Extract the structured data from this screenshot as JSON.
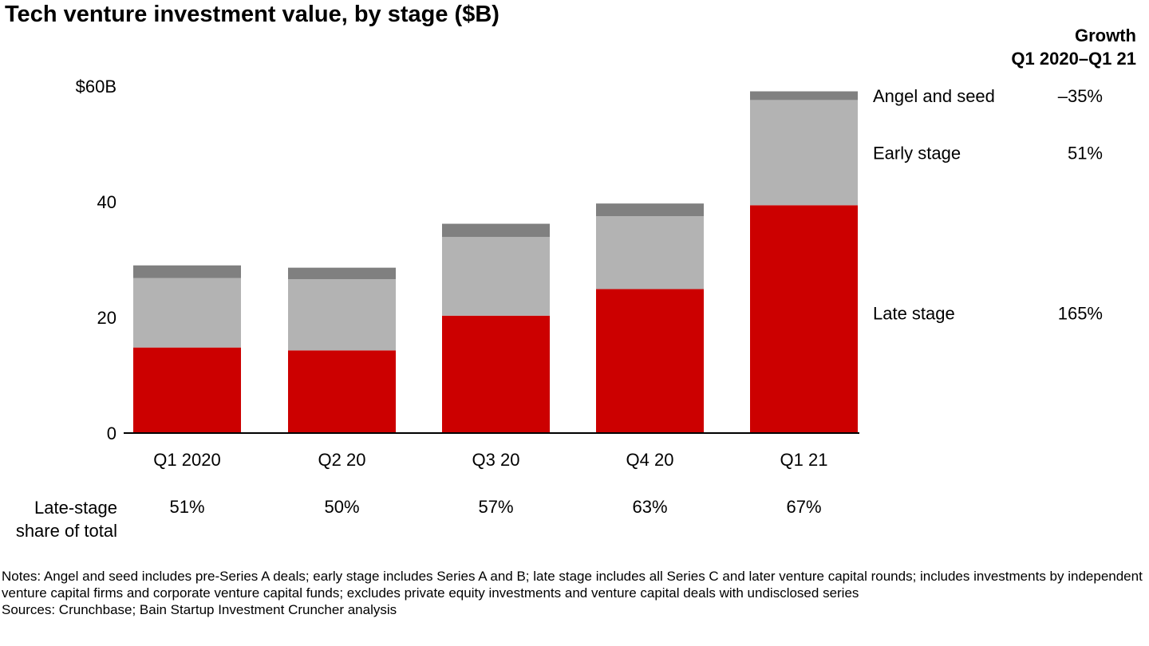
{
  "title": "Tech venture investment value, by stage ($B)",
  "growth_header": {
    "line1": "Growth",
    "line2": "Q1 2020–Q1 21"
  },
  "share_row_label": {
    "line1": "Late-stage",
    "line2": "share of total"
  },
  "notes": {
    "line1": "Notes: Angel and seed includes pre-Series A deals; early stage includes Series A and B; late stage includes all Series C and later venture capital rounds; includes investments by independent venture capital firms and corporate venture capital funds; excludes private equity investments and venture capital deals with undisclosed series",
    "line2": "Sources: Crunchbase; Bain Startup Investment Cruncher analysis"
  },
  "chart_data": {
    "type": "bar",
    "stacked": true,
    "title": "Tech venture investment value, by stage ($B)",
    "categories": [
      "Q1 2020",
      "Q2 20",
      "Q3 20",
      "Q4 20",
      "Q1 21"
    ],
    "y_ticks": [
      "0",
      "20",
      "40",
      "$60B"
    ],
    "y_tick_values": [
      0,
      20,
      40,
      60
    ],
    "ylim": [
      0,
      60
    ],
    "grid": false,
    "legend_position": "right, at the last bar",
    "series": [
      {
        "name": "Late stage",
        "color": "#cc0000",
        "values": [
          14.8,
          14.3,
          20.3,
          24.9,
          39.4
        ],
        "growth": "165%"
      },
      {
        "name": "Early stage",
        "color": "#b3b3b3",
        "values": [
          12.0,
          12.3,
          13.6,
          12.6,
          18.2
        ],
        "growth": "51%"
      },
      {
        "name": "Angel and seed",
        "color": "#808080",
        "values": [
          2.2,
          2.0,
          2.3,
          2.2,
          1.5
        ],
        "growth": "–35%"
      }
    ],
    "late_stage_share": [
      "51%",
      "50%",
      "57%",
      "63%",
      "67%"
    ]
  }
}
